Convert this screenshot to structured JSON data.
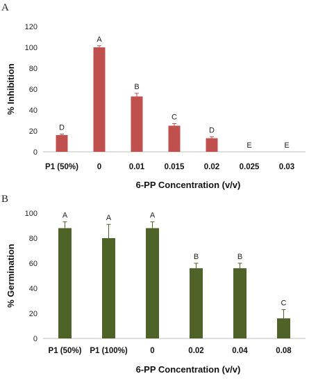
{
  "chart_data": [
    {
      "panel": "A",
      "type": "bar",
      "xlabel": "6-PP Concentration (v/v)",
      "ylabel": "% Inhibition",
      "ylim": [
        0,
        120
      ],
      "yticks": [
        0,
        20,
        40,
        60,
        80,
        100,
        120
      ],
      "grid": false,
      "color": "#c0504d",
      "categories": [
        "P1 (50%)",
        "0",
        "0.01",
        "0.015",
        "0.02",
        "0.025",
        "0.03"
      ],
      "values": [
        16,
        100,
        53,
        25,
        13,
        0,
        0
      ],
      "errors": [
        1,
        1.5,
        3,
        2,
        1.5,
        0,
        0
      ],
      "letters": [
        "D",
        "A",
        "B",
        "C",
        "D",
        "E",
        "E"
      ]
    },
    {
      "panel": "B",
      "type": "bar",
      "xlabel": "6-PP Concentration (v/v)",
      "ylabel": "% Germination",
      "ylim": [
        0,
        100
      ],
      "yticks": [
        0,
        20,
        40,
        60,
        80,
        100
      ],
      "grid": false,
      "color": "#4f6228",
      "categories": [
        "P1 (50%)",
        "P1 (100%)",
        "0",
        "0.02",
        "0.04",
        "0.08"
      ],
      "values": [
        88,
        80,
        88,
        56,
        56,
        16
      ],
      "errors": [
        5,
        11,
        5,
        4,
        4,
        7
      ],
      "letters": [
        "A",
        "A",
        "A",
        "B",
        "B",
        "C"
      ]
    }
  ]
}
